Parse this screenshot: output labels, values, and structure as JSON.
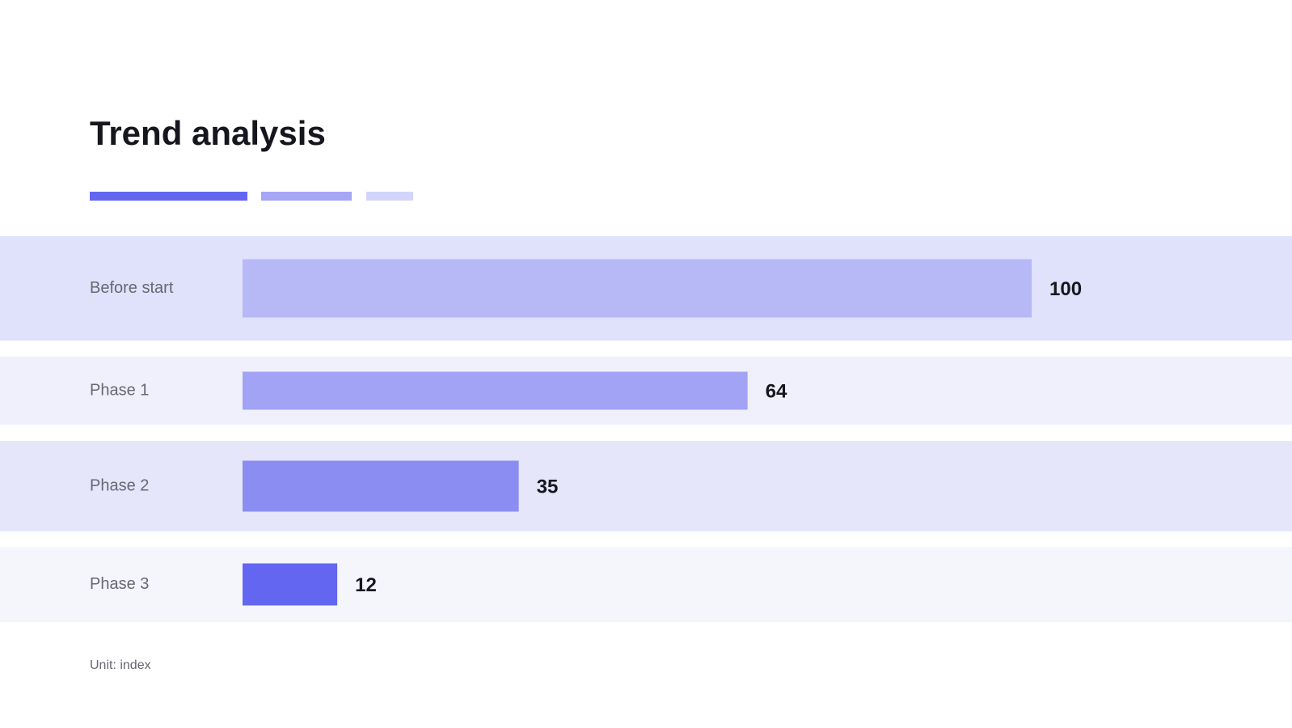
{
  "chart_data": {
    "type": "hbar",
    "title": "Trend analysis",
    "categories": [
      "Before start",
      "Phase 1",
      "Phase 2",
      "Phase 3"
    ],
    "values": [
      100,
      64,
      35,
      12
    ],
    "colors": [
      "#b7b8f6",
      "#a2a3f4",
      "#8b8df2",
      "#6366f1"
    ],
    "note": "Unit: index"
  }
}
